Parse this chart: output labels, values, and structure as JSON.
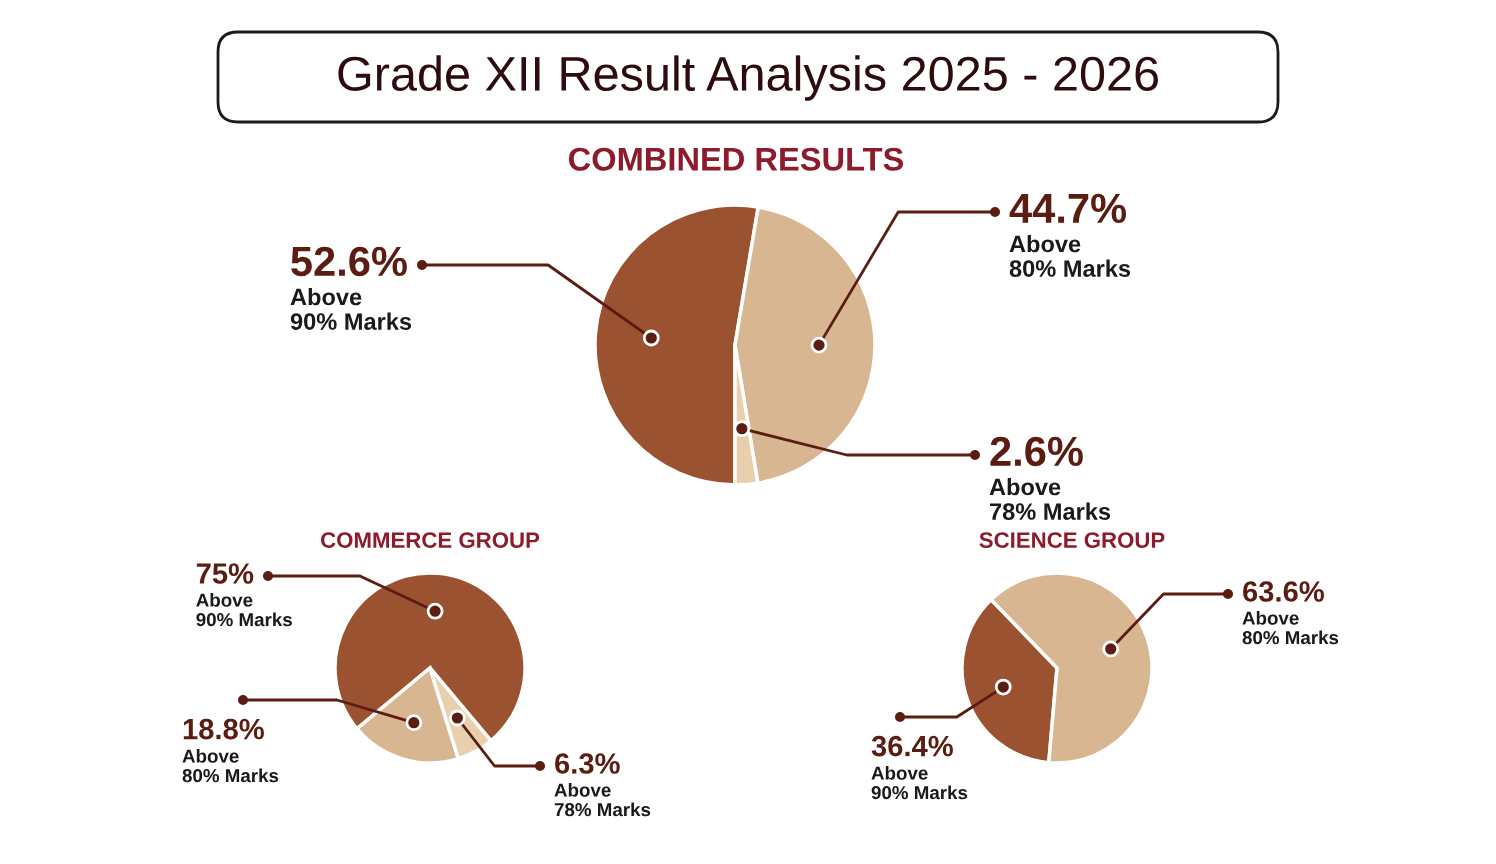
{
  "chart_data": [
    {
      "type": "pie",
      "title": "Grade XII Result Analysis 2025 - 2026",
      "subtitle": "COMBINED RESULTS",
      "categories": [
        "Above\n90% Marks",
        "Above\n80% Marks",
        "Above\n78% Marks"
      ],
      "values": [
        52.6,
        44.7,
        2.6
      ],
      "colors": [
        "#9a5230",
        "#d9b692",
        "#e8cfae"
      ],
      "value_labels": [
        "52.6%",
        "44.7%",
        "2.6%"
      ]
    },
    {
      "type": "pie",
      "title": "COMMERCE GROUP",
      "categories": [
        "Above\n90% Marks",
        "Above\n80% Marks",
        "Above\n78% Marks"
      ],
      "values": [
        75,
        18.8,
        6.3
      ],
      "colors": [
        "#9a5230",
        "#d9b692",
        "#e8cfae"
      ],
      "value_labels": [
        "75%",
        "18.8%",
        "6.3%"
      ]
    },
    {
      "type": "pie",
      "title": "SCIENCE GROUP",
      "categories": [
        "Above\n90% Marks",
        "Above\n80% Marks"
      ],
      "values": [
        36.4,
        63.6
      ],
      "colors": [
        "#9a5230",
        "#d9b692"
      ],
      "value_labels": [
        "36.4%",
        "63.6%"
      ]
    }
  ]
}
